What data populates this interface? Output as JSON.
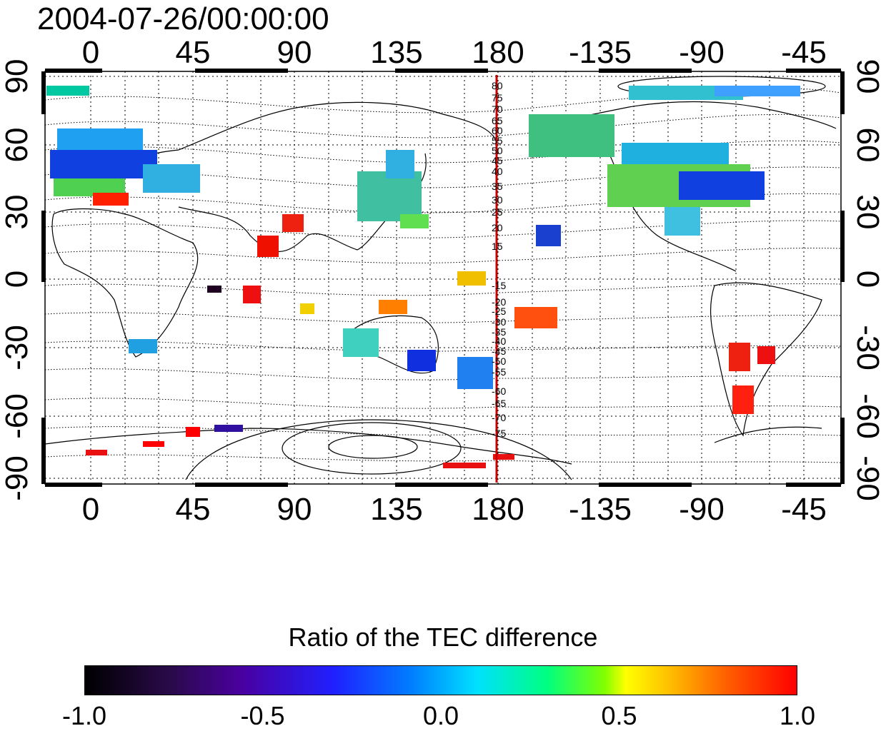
{
  "title": "2004-07-26/00:00:00",
  "map": {
    "top_axis_labels": [
      "0",
      "45",
      "90",
      "135",
      "180",
      "-135",
      "-90",
      "-45"
    ],
    "bottom_axis_labels": [
      "0",
      "45",
      "90",
      "135",
      "180",
      "-135",
      "-90",
      "-45"
    ],
    "left_axis_labels": [
      "90",
      "60",
      "30",
      "0",
      "-30",
      "-60",
      "-90"
    ],
    "right_axis_labels": [
      "90",
      "60",
      "30",
      "0",
      "-30",
      "-60",
      "-90"
    ],
    "meridian_line_color": "#cc0000",
    "contour_labels_north": [
      "80",
      "75",
      "70",
      "65",
      "60",
      "55",
      "50",
      "45",
      "40",
      "35",
      "30",
      "25",
      "20",
      "15"
    ],
    "contour_labels_south": [
      "-15",
      "-20",
      "-25",
      "-30",
      "-35",
      "-40",
      "-45",
      "-50",
      "-55",
      "-60",
      "-65",
      "-70",
      "-75"
    ]
  },
  "colorbar": {
    "title": "Ratio of the TEC difference",
    "tick_labels": [
      "-1.0",
      "-0.5",
      "0.0",
      "0.5",
      "1.0"
    ],
    "range": [
      -1.0,
      1.0
    ]
  }
}
